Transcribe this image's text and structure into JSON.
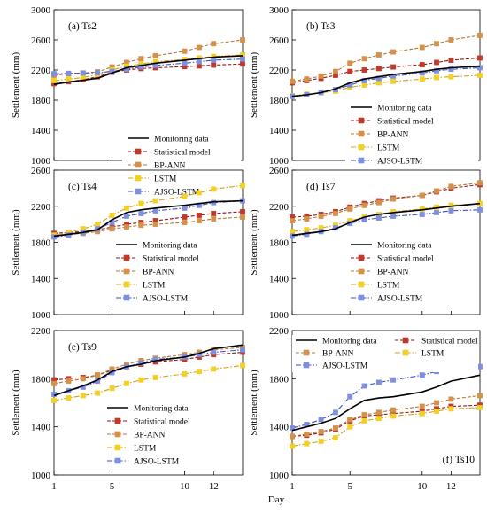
{
  "figure": {
    "ylabel": "Settlement (mm)",
    "xlabel": "Day",
    "x_ticks": [
      1,
      5,
      10,
      12
    ],
    "legend": [
      {
        "key": "mon",
        "label": "Monitoring data",
        "color": "#000000",
        "marker": "none",
        "dash": "solid"
      },
      {
        "key": "stat",
        "label": "Statistical model",
        "color": "#8b1a1a",
        "marker": "#c0392b",
        "dash": "dash"
      },
      {
        "key": "bp",
        "label": "BP-ANN",
        "color": "#b07a3c",
        "marker": "#d4914b",
        "dash": "dash"
      },
      {
        "key": "lstm",
        "label": "LSTM",
        "color": "#d4a21a",
        "marker": "#f2d024",
        "dash": "dashdot"
      },
      {
        "key": "ajso",
        "label": "AJSO-LSTM",
        "color": "#3f51b5",
        "marker": "#7f8fe0",
        "dash": "dashdot"
      }
    ]
  },
  "chart_data": [
    {
      "type": "line",
      "title": "(a) Ts2",
      "ylim": [
        1000,
        3000
      ],
      "yticks": [
        1000,
        1400,
        1800,
        2200,
        2600,
        3000
      ],
      "x": [
        1,
        2,
        3,
        4,
        5,
        6,
        7,
        8,
        10,
        11,
        12,
        14
      ],
      "series": [
        {
          "key": "mon",
          "name": "Monitoring data",
          "values": [
            2010,
            2040,
            2065,
            2090,
            2160,
            2230,
            2260,
            2290,
            2330,
            2350,
            2370,
            2390
          ]
        },
        {
          "key": "stat",
          "name": "Statistical model",
          "values": [
            2020,
            2045,
            2070,
            2110,
            2170,
            2200,
            2220,
            2230,
            2245,
            2255,
            2265,
            2280
          ]
        },
        {
          "key": "bp",
          "name": "BP-ANN",
          "values": [
            2130,
            2150,
            2160,
            2175,
            2240,
            2300,
            2350,
            2390,
            2450,
            2500,
            2550,
            2600
          ]
        },
        {
          "key": "lstm",
          "name": "LSTM",
          "values": [
            2060,
            2080,
            2100,
            2140,
            2200,
            2250,
            2280,
            2310,
            2340,
            2360,
            2380,
            2400
          ]
        },
        {
          "key": "ajso",
          "name": "AJSO-LSTM",
          "values": [
            2150,
            2155,
            2160,
            2165,
            2180,
            2210,
            2240,
            2260,
            2290,
            2310,
            2330,
            2345
          ]
        }
      ]
    },
    {
      "type": "line",
      "title": "(b) Ts3",
      "ylim": [
        1000,
        3000
      ],
      "yticks": [
        1000,
        1400,
        1800,
        2200,
        2600,
        3000
      ],
      "x": [
        1,
        2,
        3,
        4,
        5,
        6,
        7,
        8,
        10,
        11,
        12,
        14
      ],
      "series": [
        {
          "key": "mon",
          "name": "Monitoring data",
          "values": [
            1850,
            1870,
            1900,
            1950,
            2030,
            2080,
            2110,
            2140,
            2180,
            2210,
            2230,
            2250
          ]
        },
        {
          "key": "stat",
          "name": "Statistical model",
          "values": [
            2030,
            2060,
            2090,
            2130,
            2180,
            2200,
            2220,
            2240,
            2270,
            2300,
            2330,
            2360
          ]
        },
        {
          "key": "bp",
          "name": "BP-ANN",
          "values": [
            2050,
            2080,
            2120,
            2180,
            2290,
            2350,
            2400,
            2440,
            2500,
            2550,
            2600,
            2660
          ]
        },
        {
          "key": "lstm",
          "name": "LSTM",
          "values": [
            1860,
            1880,
            1900,
            1920,
            1970,
            2000,
            2030,
            2050,
            2080,
            2100,
            2110,
            2130
          ]
        },
        {
          "key": "ajso",
          "name": "AJSO-LSTM",
          "values": [
            1850,
            1870,
            1900,
            1940,
            2000,
            2060,
            2090,
            2120,
            2160,
            2190,
            2210,
            2230
          ]
        }
      ]
    },
    {
      "type": "line",
      "title": "(c) Ts4",
      "ylim": [
        1000,
        2600
      ],
      "yticks": [
        1000,
        1400,
        1800,
        2200,
        2600
      ],
      "x": [
        1,
        2,
        3,
        4,
        5,
        6,
        7,
        8,
        10,
        11,
        12,
        14
      ],
      "series": [
        {
          "key": "mon",
          "name": "Monitoring data",
          "values": [
            1870,
            1890,
            1910,
            1940,
            2050,
            2130,
            2160,
            2180,
            2210,
            2230,
            2250,
            2260
          ]
        },
        {
          "key": "stat",
          "name": "Statistical model",
          "values": [
            1900,
            1910,
            1920,
            1940,
            1970,
            2000,
            2020,
            2040,
            2080,
            2100,
            2120,
            2140
          ]
        },
        {
          "key": "bp",
          "name": "BP-ANN",
          "values": [
            1880,
            1890,
            1900,
            1920,
            1950,
            1970,
            1990,
            2000,
            2020,
            2040,
            2060,
            2080
          ]
        },
        {
          "key": "lstm",
          "name": "LSTM",
          "values": [
            1880,
            1910,
            1950,
            2000,
            2100,
            2180,
            2230,
            2260,
            2310,
            2350,
            2390,
            2430
          ]
        },
        {
          "key": "ajso",
          "name": "AJSO-LSTM",
          "values": [
            1860,
            1880,
            1910,
            1950,
            2020,
            2090,
            2120,
            2150,
            2180,
            2210,
            2240,
            2260
          ]
        }
      ]
    },
    {
      "type": "line",
      "title": "(d) Ts7",
      "ylim": [
        1000,
        2600
      ],
      "yticks": [
        1000,
        1400,
        1800,
        2200,
        2600
      ],
      "x": [
        1,
        2,
        3,
        4,
        5,
        6,
        7,
        8,
        10,
        11,
        12,
        14
      ],
      "series": [
        {
          "key": "mon",
          "name": "Monitoring data",
          "values": [
            1880,
            1900,
            1920,
            1950,
            2020,
            2080,
            2110,
            2130,
            2160,
            2180,
            2200,
            2230
          ]
        },
        {
          "key": "stat",
          "name": "Statistical model",
          "values": [
            2080,
            2090,
            2110,
            2140,
            2190,
            2230,
            2260,
            2290,
            2320,
            2360,
            2400,
            2440
          ]
        },
        {
          "key": "bp",
          "name": "BP-ANN",
          "values": [
            2040,
            2060,
            2090,
            2120,
            2170,
            2210,
            2240,
            2280,
            2320,
            2370,
            2420,
            2460
          ]
        },
        {
          "key": "lstm",
          "name": "LSTM",
          "values": [
            1920,
            1940,
            1960,
            1990,
            2040,
            2080,
            2110,
            2140,
            2170,
            2190,
            2210,
            2230
          ]
        },
        {
          "key": "ajso",
          "name": "AJSO-LSTM",
          "values": [
            1870,
            1890,
            1920,
            1960,
            2010,
            2050,
            2070,
            2090,
            2110,
            2130,
            2150,
            2160
          ]
        }
      ]
    },
    {
      "type": "line",
      "title": "(e) Ts9",
      "ylim": [
        1000,
        2200
      ],
      "yticks": [
        1000,
        1400,
        1800,
        2200
      ],
      "x": [
        1,
        2,
        3,
        4,
        5,
        6,
        7,
        8,
        10,
        11,
        12,
        14
      ],
      "series": [
        {
          "key": "mon",
          "name": "Monitoring data",
          "values": [
            1660,
            1700,
            1740,
            1790,
            1860,
            1900,
            1920,
            1950,
            1980,
            2010,
            2050,
            2080
          ]
        },
        {
          "key": "stat",
          "name": "Statistical model",
          "values": [
            1790,
            1800,
            1810,
            1830,
            1870,
            1900,
            1920,
            1940,
            1960,
            1980,
            2000,
            2020
          ]
        },
        {
          "key": "bp",
          "name": "BP-ANN",
          "values": [
            1760,
            1780,
            1800,
            1830,
            1880,
            1920,
            1950,
            1970,
            2000,
            2020,
            2040,
            2060
          ]
        },
        {
          "key": "lstm",
          "name": "LSTM",
          "values": [
            1620,
            1640,
            1660,
            1680,
            1720,
            1760,
            1790,
            1810,
            1840,
            1860,
            1880,
            1910
          ]
        },
        {
          "key": "ajso",
          "name": "AJSO-LSTM",
          "values": [
            1670,
            1700,
            1730,
            1780,
            1850,
            1900,
            1930,
            1960,
            1980,
            2000,
            2020,
            2040
          ]
        }
      ]
    },
    {
      "type": "line",
      "title": "(f) Ts10",
      "ylim": [
        1000,
        2200
      ],
      "yticks": [
        1000,
        1400,
        1800,
        2200
      ],
      "x": [
        1,
        2,
        3,
        4,
        5,
        6,
        7,
        8,
        10,
        11,
        12,
        14
      ],
      "series": [
        {
          "key": "mon",
          "name": "Monitoring data",
          "values": [
            1370,
            1400,
            1430,
            1470,
            1550,
            1620,
            1640,
            1650,
            1690,
            1730,
            1780,
            1830
          ]
        },
        {
          "key": "stat",
          "name": "Statistical model",
          "values": [
            1320,
            1330,
            1350,
            1380,
            1450,
            1490,
            1500,
            1510,
            1530,
            1550,
            1570,
            1580
          ]
        },
        {
          "key": "bp",
          "name": "BP-ANN",
          "values": [
            1320,
            1340,
            1360,
            1390,
            1460,
            1500,
            1520,
            1540,
            1570,
            1600,
            1630,
            1660
          ]
        },
        {
          "key": "lstm",
          "name": "LSTM",
          "values": [
            1240,
            1260,
            1280,
            1310,
            1400,
            1450,
            1470,
            1490,
            1510,
            1530,
            1550,
            1560
          ]
        },
        {
          "key": "ajso",
          "name": "AJSO-LSTM",
          "values": [
            1390,
            1420,
            1460,
            1520,
            1650,
            1740,
            1770,
            1790,
            1830,
            1860,
            1890,
            1900
          ]
        }
      ]
    }
  ]
}
